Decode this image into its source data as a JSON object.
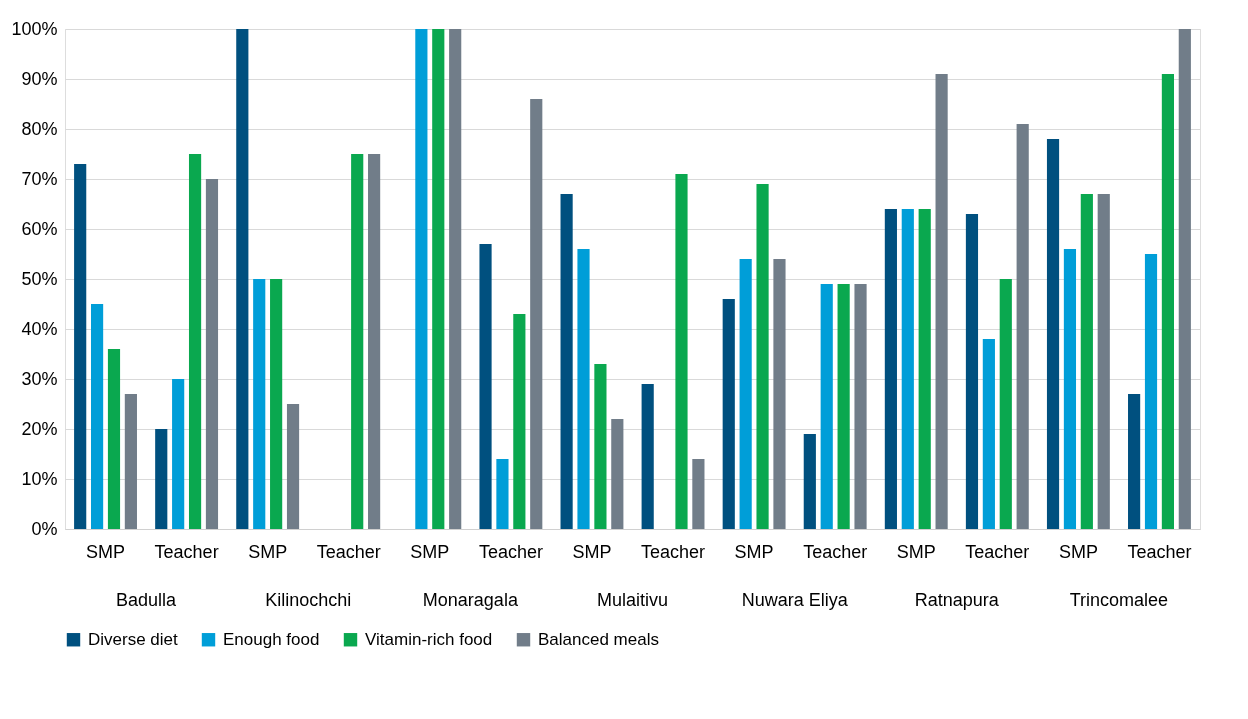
{
  "chart_data": {
    "type": "bar",
    "categories": [
      "SMP",
      "Teacher",
      "SMP",
      "Teacher",
      "SMP",
      "Teacher",
      "SMP",
      "Teacher",
      "SMP",
      "Teacher",
      "SMP",
      "Teacher",
      "SMP",
      "Teacher"
    ],
    "annotations": [
      "Badulla",
      "Kilinochchi",
      "Monaragala",
      "Mulaitivu",
      "Nuwara Eliya",
      "Ratnapura",
      "Trincomalee"
    ],
    "series": [
      {
        "name": "Diverse diet",
        "color": "#00507f",
        "values": [
          73,
          20,
          100,
          null,
          null,
          57,
          67,
          29,
          46,
          19,
          64,
          63,
          78,
          27
        ]
      },
      {
        "name": "Enough food",
        "color": "#009ed8",
        "values": [
          45,
          30,
          50,
          null,
          100,
          14,
          56,
          null,
          54,
          49,
          64,
          38,
          56,
          55
        ]
      },
      {
        "name": "Vitamin-rich food",
        "color": "#0aa84f",
        "values": [
          36,
          75,
          50,
          75,
          100,
          43,
          33,
          71,
          69,
          49,
          64,
          50,
          67,
          91
        ]
      },
      {
        "name": "Balanced meals",
        "color": "#717d89",
        "values": [
          27,
          70,
          25,
          75,
          100,
          86,
          22,
          14,
          54,
          49,
          91,
          81,
          67,
          100
        ]
      }
    ],
    "ylim": [
      0,
      100
    ],
    "yticks": [
      {
        "value": 0,
        "label": "0%"
      },
      {
        "value": 10,
        "label": "10%"
      },
      {
        "value": 20,
        "label": "20%"
      },
      {
        "value": 30,
        "label": "30%"
      },
      {
        "value": 40,
        "label": "40%"
      },
      {
        "value": 50,
        "label": "50%"
      },
      {
        "value": 60,
        "label": "60%"
      },
      {
        "value": 70,
        "label": "70%"
      },
      {
        "value": 80,
        "label": "80%"
      },
      {
        "value": 90,
        "label": "90%"
      },
      {
        "value": 100,
        "label": "100%"
      }
    ],
    "grid": "y",
    "legend": "bottom"
  }
}
